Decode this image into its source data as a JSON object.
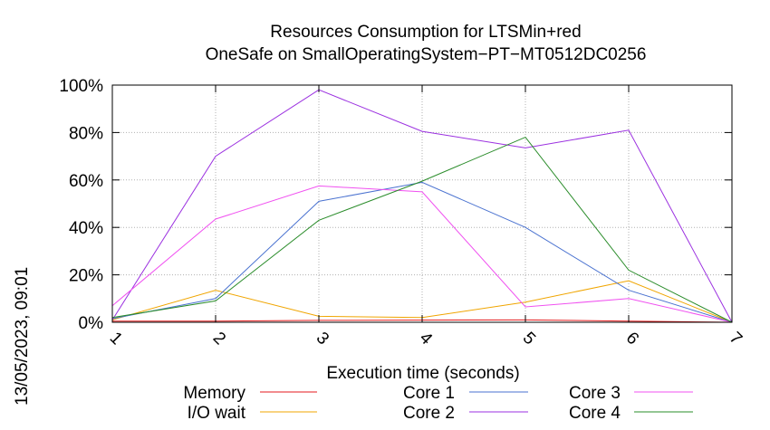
{
  "chart_data": {
    "type": "line",
    "title": "Resources Consumption for LTSMin+red",
    "subtitle": "OneSafe on SmallOperatingSystem−PT−MT0512DC0256",
    "xlabel": "Execution time (seconds)",
    "ylabel": "",
    "timestamp": "13/05/2023, 09:01",
    "xlim": [
      1,
      7
    ],
    "ylim": [
      0,
      100
    ],
    "x_ticks": [
      "1",
      "2",
      "3",
      "4",
      "5",
      "6",
      "7"
    ],
    "y_ticks": [
      "0%",
      "20%",
      "40%",
      "60%",
      "80%",
      "100%"
    ],
    "grid": true,
    "x": [
      1,
      2,
      3,
      4,
      5,
      6,
      7
    ],
    "series": [
      {
        "name": "Memory",
        "color": "#e41a1c",
        "values": [
          0.5,
          0.5,
          0.8,
          0.9,
          1.0,
          0.5,
          0
        ]
      },
      {
        "name": "I/O wait",
        "color": "#f0a500",
        "values": [
          1,
          13.5,
          2.5,
          2,
          8.5,
          17.5,
          0
        ]
      },
      {
        "name": "Core 1",
        "color": "#4a72d0",
        "values": [
          1.5,
          10,
          51,
          59,
          40,
          13.5,
          0
        ]
      },
      {
        "name": "Core 2",
        "color": "#9b30e0",
        "values": [
          1,
          70,
          98,
          80.5,
          73.5,
          81,
          0
        ]
      },
      {
        "name": "Core 3",
        "color": "#f050f0",
        "values": [
          7,
          43.5,
          57.5,
          55,
          6.5,
          10,
          0
        ]
      },
      {
        "name": "Core 4",
        "color": "#2a8c2a",
        "values": [
          2,
          9,
          43,
          59.5,
          78,
          22,
          0
        ]
      }
    ]
  }
}
